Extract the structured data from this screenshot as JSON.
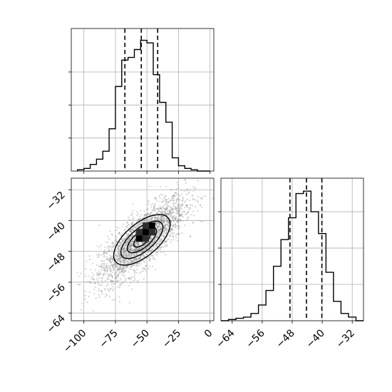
{
  "chart_data": [
    {
      "type": "histogram",
      "panel": "top-left",
      "variable": "x",
      "xlim": [
        -110,
        3
      ],
      "show_x_ticks": false,
      "bin_edges": [
        -105,
        -100,
        -95,
        -90,
        -85,
        -80,
        -75,
        -70,
        -65,
        -60,
        -55,
        -50,
        -45,
        -40,
        -35,
        -30,
        -25,
        -20,
        -15,
        -10,
        -5,
        0
      ],
      "counts": [
        1,
        2,
        5,
        9,
        15,
        32,
        64,
        84,
        86,
        92,
        99,
        97,
        73,
        52,
        37,
        10,
        4,
        2,
        1,
        0,
        0
      ],
      "quantiles": [
        -67.5,
        -54.5,
        -41.5
      ],
      "grid": true
    },
    {
      "type": "scatter",
      "panel": "bottom-left",
      "xlim": [
        -110,
        3
      ],
      "ylim": [
        -66,
        -29
      ],
      "xticks": [
        -100,
        -75,
        -50,
        -25,
        0
      ],
      "yticks": [
        -32,
        -40,
        -48,
        -56,
        -64
      ],
      "center": [
        -54,
        -45
      ],
      "spread": [
        17,
        5.5
      ],
      "correlation": 0.78,
      "density_peak": [
        -51,
        -43
      ],
      "grid": true
    },
    {
      "type": "histogram",
      "panel": "bottom-right",
      "variable": "y",
      "xlim": [
        -67,
        -29
      ],
      "xticks": [
        -64,
        -56,
        -48,
        -40,
        -32
      ],
      "bin_edges": [
        -67,
        -65,
        -63,
        -61,
        -59,
        -57,
        -55,
        -53,
        -51,
        -49,
        -47,
        -45,
        -43,
        -41,
        -39,
        -37,
        -35,
        -33,
        -31,
        -29
      ],
      "counts": [
        0,
        1,
        2,
        3,
        6,
        13,
        25,
        45,
        67,
        85,
        105,
        107,
        90,
        72,
        40,
        16,
        6,
        3,
        0
      ],
      "quantiles": [
        -48.6,
        -44.2,
        -40.1
      ],
      "grid": true
    }
  ]
}
